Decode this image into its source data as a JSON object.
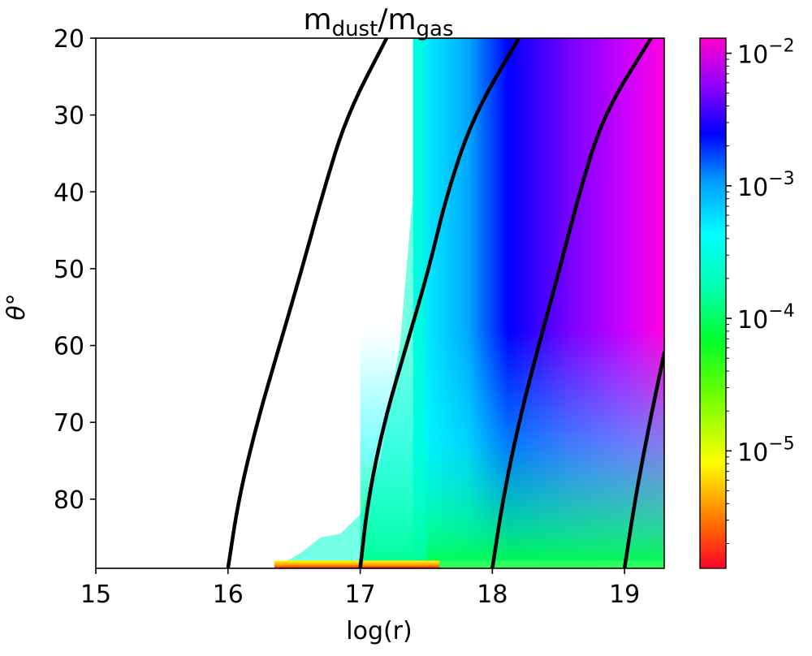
{
  "chart_data": {
    "type": "heatmap",
    "title_main": "m",
    "title_sub1": "dust",
    "title_slash": "/m",
    "title_sub2": "gas",
    "xlabel": "log(r)",
    "ylabel": "θ°",
    "xlim": [
      15,
      19.3
    ],
    "ylim": [
      20,
      89
    ],
    "ylim_inverted": true,
    "x_ticks": [
      15,
      16,
      17,
      18,
      19
    ],
    "x_tick_labels": [
      "15",
      "16",
      "17",
      "18",
      "19"
    ],
    "y_ticks": [
      20,
      30,
      40,
      50,
      60,
      70,
      80
    ],
    "y_tick_labels": [
      "20",
      "30",
      "40",
      "50",
      "60",
      "70",
      "80"
    ],
    "colorbar": {
      "scale": "log",
      "colormap": "gist_rainbow",
      "range": [
        1.3e-06,
        0.013
      ],
      "ticks": [
        {
          "value": 1e-05,
          "base": "10",
          "exp": "−5"
        },
        {
          "value": 0.0001,
          "base": "10",
          "exp": "−4"
        },
        {
          "value": 0.001,
          "base": "10",
          "exp": "−3"
        },
        {
          "value": 0.01,
          "base": "10",
          "exp": "−2"
        }
      ]
    },
    "contours": [
      {
        "name": "contour-16",
        "points": [
          [
            16.0,
            89
          ],
          [
            16.08,
            80
          ],
          [
            16.22,
            70
          ],
          [
            16.39,
            60
          ],
          [
            16.56,
            50
          ],
          [
            16.72,
            40
          ],
          [
            16.9,
            30
          ],
          [
            17.2,
            20
          ]
        ]
      },
      {
        "name": "contour-17",
        "points": [
          [
            17.0,
            89
          ],
          [
            17.06,
            80
          ],
          [
            17.18,
            70
          ],
          [
            17.35,
            60
          ],
          [
            17.52,
            50
          ],
          [
            17.66,
            40
          ],
          [
            17.86,
            30
          ],
          [
            18.2,
            20
          ]
        ]
      },
      {
        "name": "contour-18",
        "points": [
          [
            18.0,
            89
          ],
          [
            18.08,
            80
          ],
          [
            18.2,
            70
          ],
          [
            18.35,
            60
          ],
          [
            18.51,
            50
          ],
          [
            18.66,
            40
          ],
          [
            18.84,
            30
          ],
          [
            19.2,
            20
          ]
        ]
      },
      {
        "name": "contour-19",
        "points": [
          [
            19.0,
            89
          ],
          [
            19.08,
            80
          ],
          [
            19.19,
            70
          ],
          [
            19.3,
            61
          ]
        ]
      }
    ]
  }
}
